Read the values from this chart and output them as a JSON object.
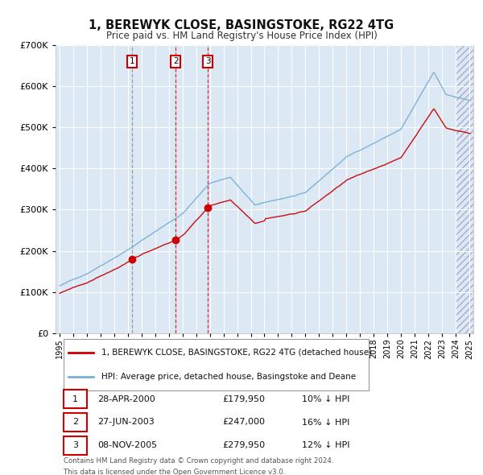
{
  "title": "1, BEREWYK CLOSE, BASINGSTOKE, RG22 4TG",
  "subtitle": "Price paid vs. HM Land Registry's House Price Index (HPI)",
  "legend_property": "1, BEREWYK CLOSE, BASINGSTOKE, RG22 4TG (detached house)",
  "legend_hpi": "HPI: Average price, detached house, Basingstoke and Deane",
  "transactions": [
    {
      "label": "1",
      "date": "28-APR-2000",
      "price": "£179,950",
      "hpi_diff": "10% ↓ HPI",
      "x_year": 2000.32,
      "prop_price": 179950
    },
    {
      "label": "2",
      "date": "27-JUN-2003",
      "price": "£247,000",
      "hpi_diff": "16% ↓ HPI",
      "x_year": 2003.49,
      "prop_price": 247000
    },
    {
      "label": "3",
      "date": "08-NOV-2005",
      "price": "£279,950",
      "hpi_diff": "12% ↓ HPI",
      "x_year": 2005.85,
      "prop_price": 279950
    }
  ],
  "footer_line1": "Contains HM Land Registry data © Crown copyright and database right 2024.",
  "footer_line2": "This data is licensed under the Open Government Licence v3.0.",
  "plot_bg": "#dce9f5",
  "fig_bg": "#ffffff",
  "grid_color": "#ffffff",
  "property_line_color": "#cc0000",
  "hpi_line_color": "#7aafd4",
  "vline1_color": "#888888",
  "vline23_color": "#cc0000",
  "ylim": [
    0,
    700000
  ],
  "xlim_start": 1994.7,
  "xlim_end": 2025.3
}
